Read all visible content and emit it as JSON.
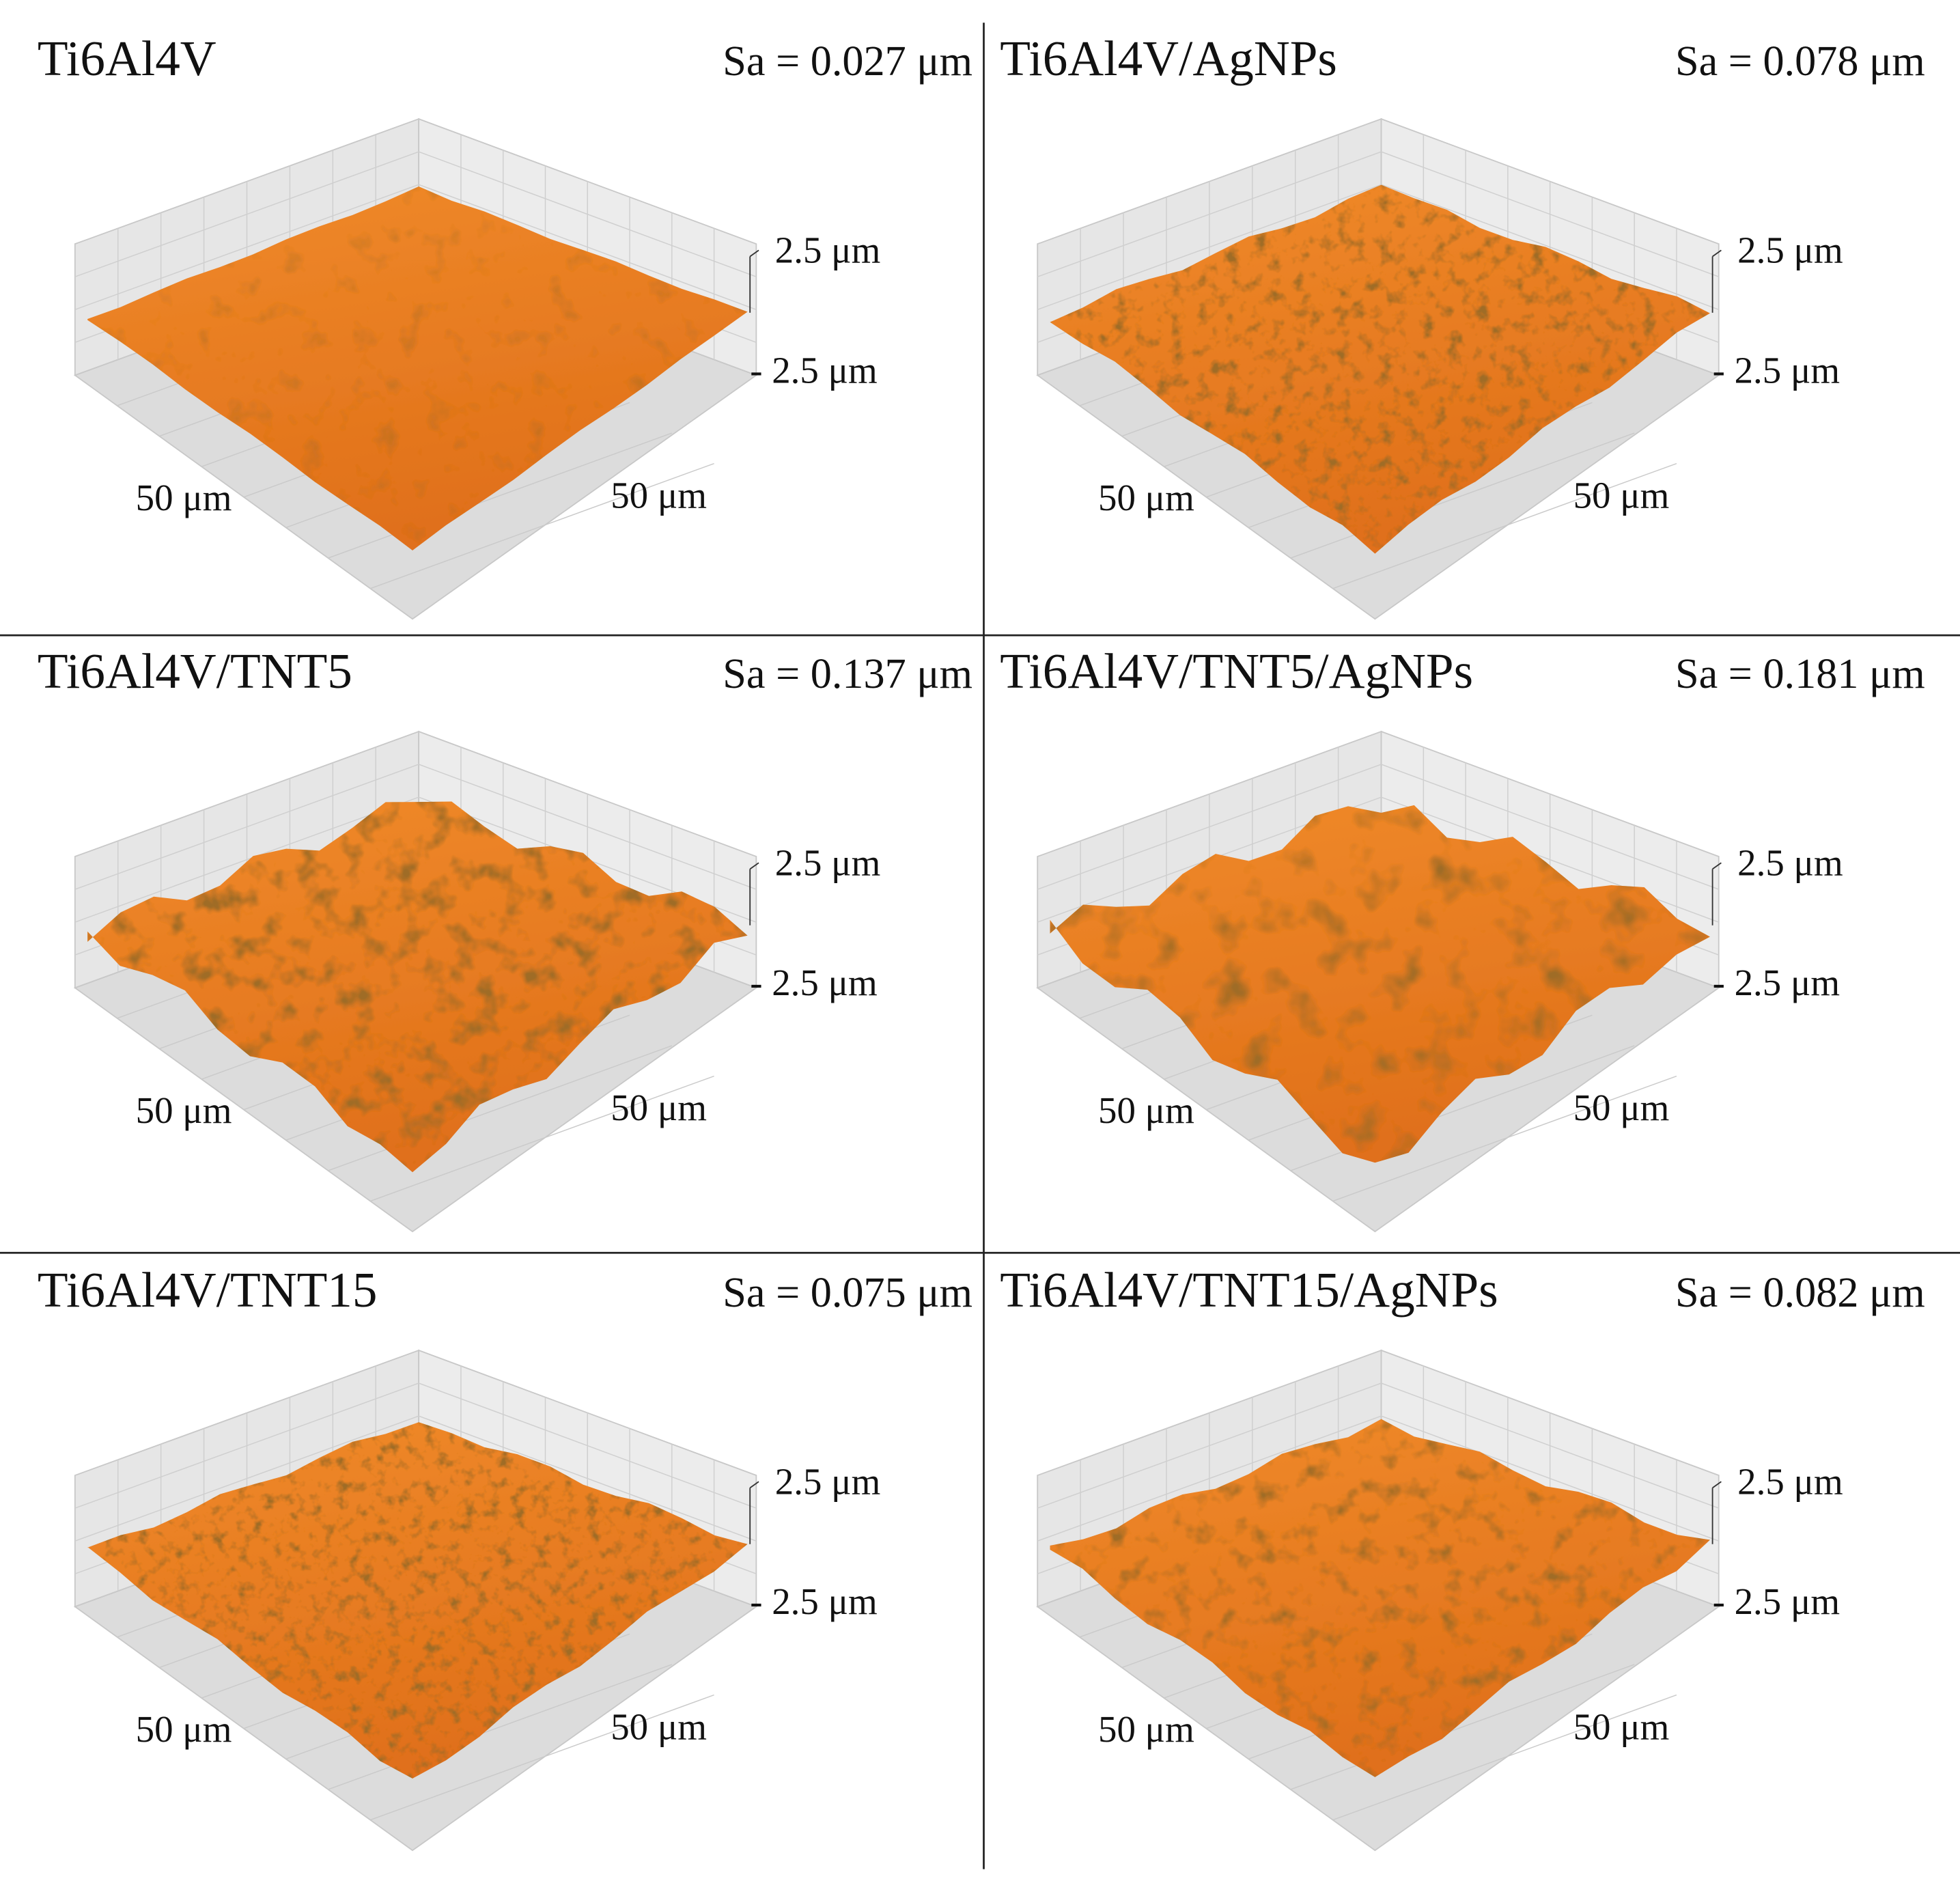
{
  "panels": [
    {
      "title": "Ti6Al4V",
      "roughness": "Sa = 0.027 μm",
      "z_max": "2.5 μm",
      "z_min": "- 2.5 μm",
      "x_label": "50 μm",
      "y_label": "50 μm"
    },
    {
      "title": "Ti6Al4V/AgNPs",
      "roughness": "Sa = 0.078 μm",
      "z_max": "2.5 μm",
      "z_min": "- 2.5 μm",
      "x_label": "50 μm",
      "y_label": "50 μm"
    },
    {
      "title": "Ti6Al4V/TNT5",
      "roughness": "Sa = 0.137 μm",
      "z_max": "2.5 μm",
      "z_min": "- 2.5 μm",
      "x_label": "50 μm",
      "y_label": "50 μm"
    },
    {
      "title": "Ti6Al4V/TNT5/AgNPs",
      "roughness": "Sa = 0.181 μm",
      "z_max": "2.5 μm",
      "z_min": "- 2.5 μm",
      "x_label": "50 μm",
      "y_label": "50 μm"
    },
    {
      "title": "Ti6Al4V/TNT15",
      "roughness": "Sa = 0.075 μm",
      "z_max": "2.5 μm",
      "z_min": "- 2.5 μm",
      "x_label": "50 μm",
      "y_label": "50 μm"
    },
    {
      "title": "Ti6Al4V/TNT15/AgNPs",
      "roughness": "Sa = 0.082 μm",
      "z_max": "2.5 μm",
      "z_min": "- 2.5 μm",
      "x_label": "50 μm",
      "y_label": "50 μm"
    }
  ]
}
